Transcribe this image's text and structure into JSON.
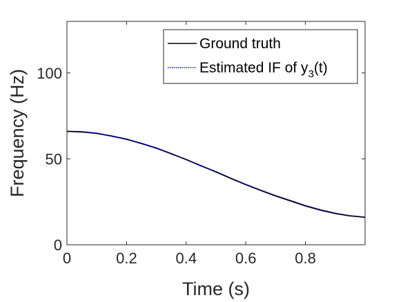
{
  "chart_data": {
    "type": "line",
    "xlabel": "Time (s)",
    "ylabel": "Frequency (Hz)",
    "xlim": [
      0,
      1
    ],
    "ylim": [
      0,
      130
    ],
    "xticks": [
      0,
      0.2,
      0.4,
      0.6,
      0.8
    ],
    "xtick_labels": [
      "0",
      "0.2",
      "0.4",
      "0.6",
      "0.8"
    ],
    "yticks": [
      0,
      50,
      100
    ],
    "ytick_labels": [
      "0",
      "50",
      "100"
    ],
    "grid": false,
    "legend_position": "top-right",
    "series": [
      {
        "name": "Ground truth",
        "color": "#000000",
        "style": "solid",
        "x": [
          0,
          0.05,
          0.1,
          0.15,
          0.2,
          0.25,
          0.3,
          0.35,
          0.4,
          0.45,
          0.5,
          0.55,
          0.6,
          0.65,
          0.7,
          0.75,
          0.8,
          0.85,
          0.9,
          0.95,
          1.0
        ],
        "values": [
          66,
          65.7,
          64.8,
          63.3,
          61.4,
          59.0,
          56.2,
          53.0,
          49.6,
          46.0,
          42.4,
          38.6,
          35.0,
          31.6,
          28.4,
          25.5,
          22.6,
          20.2,
          18.2,
          16.8,
          16.0
        ]
      },
      {
        "name": "Estimated IF of y",
        "name_sub": "3",
        "name_suffix": "(t)",
        "color": "#0000cc",
        "style": "dotted",
        "x": [
          0,
          0.05,
          0.1,
          0.15,
          0.2,
          0.25,
          0.3,
          0.35,
          0.4,
          0.45,
          0.5,
          0.55,
          0.6,
          0.65,
          0.7,
          0.75,
          0.8,
          0.85,
          0.9,
          0.95,
          1.0
        ],
        "values": [
          66.1,
          65.9,
          65.0,
          63.1,
          61.6,
          58.8,
          56.4,
          52.8,
          49.8,
          45.8,
          42.6,
          38.8,
          35.2,
          31.8,
          28.7,
          25.8,
          22.9,
          20.5,
          18.4,
          16.9,
          16.1
        ]
      }
    ]
  }
}
